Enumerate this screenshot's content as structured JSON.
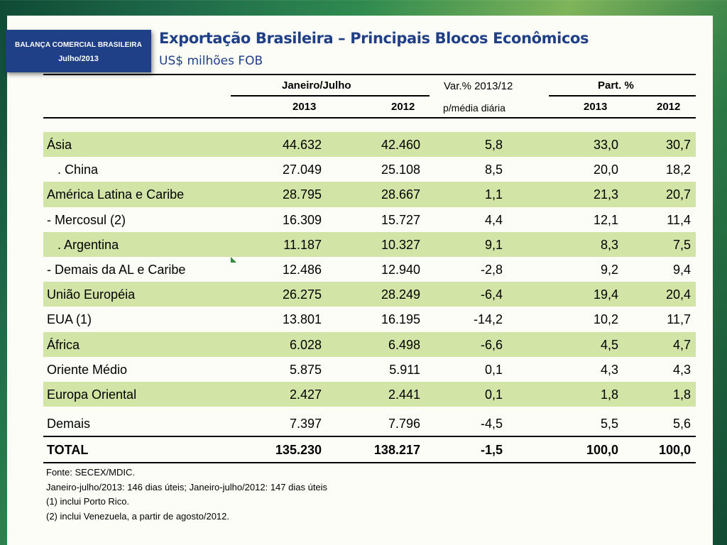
{
  "badge": {
    "line1": "BALANÇA COMERCIAL BRASILEIRA",
    "line2": "Julho/2013"
  },
  "title": "Exportação Brasileira – Principais Blocos Econômicos",
  "subtitle": "US$ milhões FOB",
  "header": {
    "period_group": "Janeiro/Julho",
    "var_line1": "Var.% 2013/12",
    "var_line2": "p/média diária",
    "part_group": "Part. %",
    "col_2013": "2013",
    "col_2012": "2012",
    "part_2013": "2013",
    "part_2012": "2012"
  },
  "rows": [
    {
      "label": "Ásia",
      "v2013": "44.632",
      "v2012": "42.460",
      "var": "5,8",
      "p2013": "33,0",
      "p2012": "30,7"
    },
    {
      "label": "  . China",
      "v2013": "27.049",
      "v2012": "25.108",
      "var": "8,5",
      "p2013": "20,0",
      "p2012": "18,2"
    },
    {
      "label": "América Latina e Caribe",
      "v2013": "28.795",
      "v2012": "28.667",
      "var": "1,1",
      "p2013": "21,3",
      "p2012": "20,7"
    },
    {
      "label": "- Mercosul (2)",
      "v2013": "16.309",
      "v2012": "15.727",
      "var": "4,4",
      "p2013": "12,1",
      "p2012": "11,4"
    },
    {
      "label": "  . Argentina",
      "v2013": "11.187",
      "v2012": "10.327",
      "var": "9,1",
      "p2013": "8,3",
      "p2012": "7,5"
    },
    {
      "label": "- Demais da AL e Caribe",
      "v2013": "12.486",
      "v2012": "12.940",
      "var": "-2,8",
      "p2013": "9,2",
      "p2012": "9,4"
    },
    {
      "label": "União Européia",
      "v2013": "26.275",
      "v2012": "28.249",
      "var": "-6,4",
      "p2013": "19,4",
      "p2012": "20,4"
    },
    {
      "label": "EUA (1)",
      "v2013": "13.801",
      "v2012": "16.195",
      "var": "-14,2",
      "p2013": "10,2",
      "p2012": "11,7"
    },
    {
      "label": "África",
      "v2013": "6.028",
      "v2012": "6.498",
      "var": "-6,6",
      "p2013": "4,5",
      "p2012": "4,7"
    },
    {
      "label": "Oriente Médio",
      "v2013": "5.875",
      "v2012": "5.911",
      "var": "0,1",
      "p2013": "4,3",
      "p2012": "4,3"
    },
    {
      "label": "Europa Oriental",
      "v2013": "2.427",
      "v2012": "2.441",
      "var": "0,1",
      "p2013": "1,8",
      "p2012": "1,8"
    },
    {
      "label": "Demais",
      "v2013": "7.397",
      "v2012": "7.796",
      "var": "-4,5",
      "p2013": "5,5",
      "p2012": "5,6"
    }
  ],
  "total": {
    "label": "TOTAL",
    "v2013": "135.230",
    "v2012": "138.217",
    "var": "-1,5",
    "p2013": "100,0",
    "p2012": "100,0"
  },
  "notes": {
    "source": "Fonte: SECEX/MDIC.",
    "days": "Janeiro-julho/2013: 146 dias úteis; Janeiro-julho/2012: 147 dias úteis",
    "n1": "(1) inclui Porto Rico.",
    "n2": "(2) inclui Venezuela, a partir de agosto/2012."
  }
}
